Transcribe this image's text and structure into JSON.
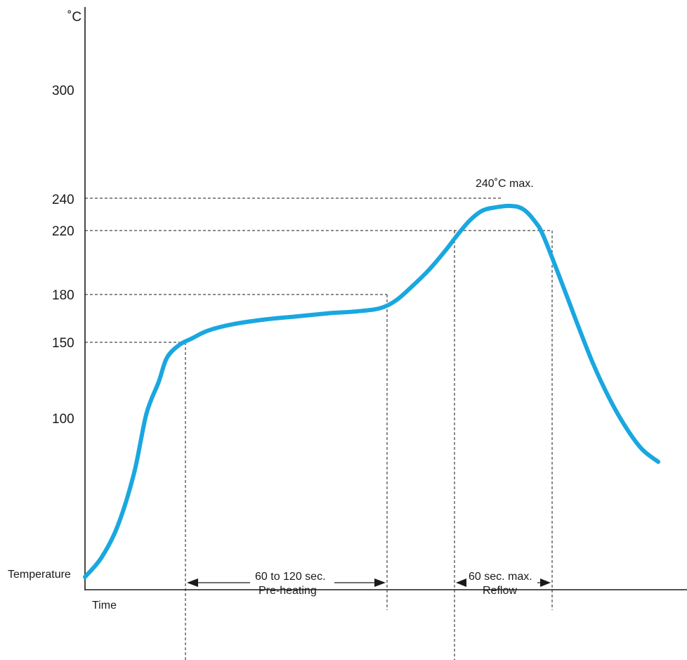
{
  "chart_data": {
    "type": "line",
    "y_unit": "˚C",
    "ylabel": "Temperature",
    "xlabel": "Time",
    "y_ticks": [
      "300",
      "240",
      "220",
      "180",
      "150",
      "100"
    ],
    "ylim": [
      0,
      370
    ],
    "xlim": [
      0,
      700
    ],
    "series": [
      {
        "color": "#1aa7e0",
        "points": [
          [
            0,
            8
          ],
          [
            20,
            20
          ],
          [
            40,
            40
          ],
          [
            60,
            73
          ],
          [
            75,
            110
          ],
          [
            90,
            130
          ],
          [
            100,
            145
          ],
          [
            115,
            153
          ],
          [
            130,
            157
          ],
          [
            150,
            162
          ],
          [
            180,
            166
          ],
          [
            220,
            169
          ],
          [
            260,
            171
          ],
          [
            300,
            173
          ],
          [
            330,
            174
          ],
          [
            360,
            176
          ],
          [
            380,
            181
          ],
          [
            400,
            190
          ],
          [
            420,
            200
          ],
          [
            440,
            212
          ],
          [
            455,
            222
          ],
          [
            470,
            231
          ],
          [
            485,
            237
          ],
          [
            500,
            239
          ],
          [
            520,
            240
          ],
          [
            535,
            238
          ],
          [
            550,
            230
          ],
          [
            560,
            221
          ],
          [
            580,
            195
          ],
          [
            600,
            168
          ],
          [
            620,
            142
          ],
          [
            640,
            120
          ],
          [
            660,
            102
          ],
          [
            680,
            88
          ],
          [
            700,
            80
          ]
        ]
      }
    ],
    "guides": [
      {
        "temperature": 240
      },
      {
        "temperature": 220
      },
      {
        "temperature": 180
      },
      {
        "temperature": 150
      }
    ],
    "annotations": {
      "peak": "240˚C max.",
      "preheat_time": "60 to 120 sec.",
      "preheat_label": "Pre-heating",
      "reflow_time": "60 sec. max.",
      "reflow_label": "Reflow"
    }
  }
}
